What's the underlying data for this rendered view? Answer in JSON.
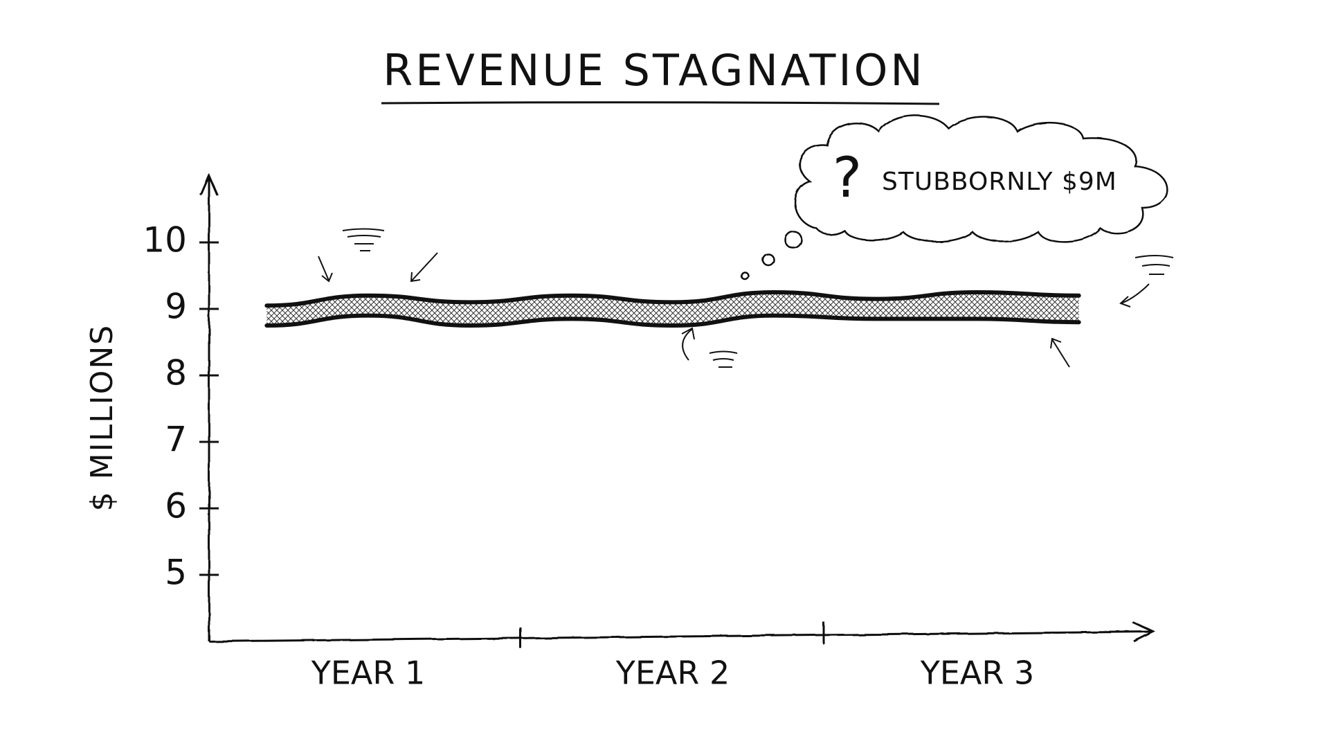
{
  "chart_data": {
    "type": "band",
    "title": "REVENUE STAGNATION",
    "y_label": "$ MILLIONS",
    "categories": [
      null,
      "YEAR 1",
      null,
      null,
      "YEAR 2",
      null,
      null,
      "YEAR 3",
      null
    ],
    "series": [
      {
        "color": "#111111",
        "values": [
          9.05,
          9.2,
          9.1,
          9.2,
          9.1,
          9.25,
          9.15,
          9.25,
          9.2
        ]
      },
      {
        "color": "#111111",
        "values": [
          8.75,
          8.9,
          8.75,
          8.85,
          8.75,
          8.9,
          8.85,
          8.85,
          8.8
        ]
      }
    ],
    "ylim": [
      4,
      11
    ],
    "yticks": [
      5,
      6,
      7,
      8,
      9,
      10
    ],
    "grid": false,
    "annotation": {
      "icon": "?",
      "text": "STUBBORNLY $9M"
    }
  }
}
